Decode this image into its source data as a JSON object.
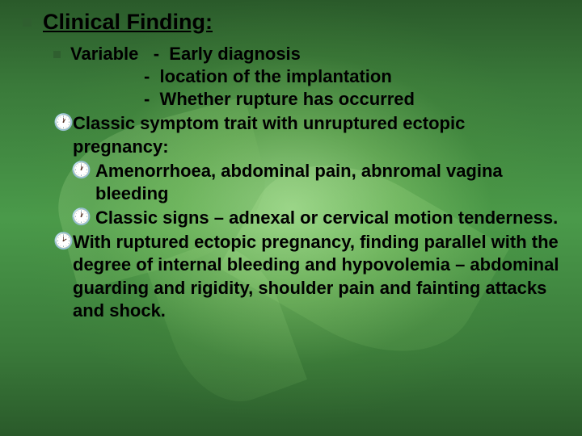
{
  "title": "Clinical Finding:",
  "variable_label": "Variable",
  "dash1": "-  Early diagnosis",
  "dash2": "-  location of the implantation",
  "dash3": "-  Whether rupture has occurred",
  "clock1_icon": "🕐",
  "clock1_text": "Classic symptom trait with unruptured ectopic pregnancy:",
  "sub1_icon": "🕐",
  "sub1_text": "Amenorrhoea, abdominal pain, abnromal vagina bleeding",
  "sub2_icon": "🕐",
  "sub2_text": "Classic signs – adnexal or cervical motion tenderness.",
  "clock2_icon": "🕑",
  "clock2_text": "With ruptured ectopic pregnancy, finding parallel with the degree of internal bleeding and hypovolemia – abdominal guarding and rigidity, shoulder pain and fainting attacks and shock."
}
